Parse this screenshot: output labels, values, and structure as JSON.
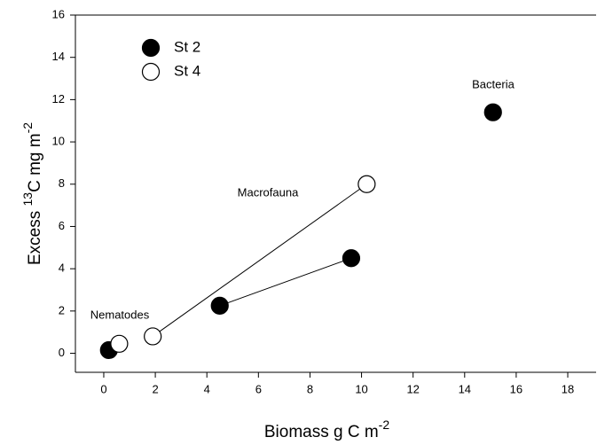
{
  "chart_data": {
    "type": "scatter",
    "xlabel": [
      "Biomass g C m",
      "-2"
    ],
    "ylabel": [
      "Excess ",
      "13",
      "C mg m",
      "-2"
    ],
    "xlim": [
      -1.1,
      19.1
    ],
    "ylim": [
      -0.9,
      16
    ],
    "xticks": [
      0,
      2,
      4,
      6,
      8,
      10,
      12,
      14,
      16,
      18
    ],
    "yticks": [
      0,
      2,
      4,
      6,
      8,
      10,
      12,
      14,
      16
    ],
    "legend": "upper left",
    "series": [
      {
        "name": "St 2",
        "color": "#000000",
        "fill": "filled",
        "x": [
          0.2,
          4.5,
          9.6,
          15.1
        ],
        "values": [
          0.15,
          2.25,
          4.5,
          11.4
        ],
        "connect": [
          1,
          2
        ]
      },
      {
        "name": "St 4",
        "color": "#000000",
        "fill": "open",
        "x": [
          0.6,
          1.9,
          10.2
        ],
        "values": [
          0.45,
          0.8,
          8.0
        ],
        "connect": [
          1,
          2
        ]
      }
    ],
    "annotations": [
      "Nematodes",
      "Macrofauna",
      "Bacteria"
    ]
  }
}
